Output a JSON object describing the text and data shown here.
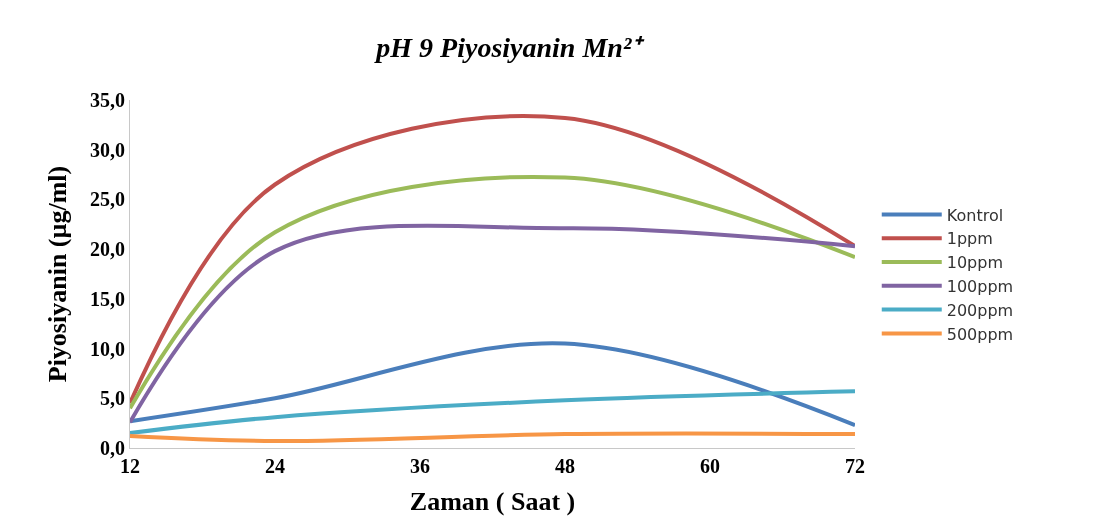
{
  "chart_data": {
    "type": "line",
    "title": "pH 9 Piyosiyanin Mn²⁺",
    "xlabel": "Zaman ( Saat )",
    "ylabel": "Piyosiyanin (µg/ml)",
    "x": [
      12,
      24,
      48,
      72
    ],
    "series": [
      {
        "name": "Kontrol",
        "color": "#4a7ebb",
        "values": [
          2.7,
          5.0,
          10.5,
          2.3
        ]
      },
      {
        "name": "1ppm",
        "color": "#c0504d",
        "values": [
          4.5,
          26.5,
          33.2,
          20.3
        ]
      },
      {
        "name": "10ppm",
        "color": "#9bbb59",
        "values": [
          4.0,
          21.7,
          27.2,
          19.2
        ]
      },
      {
        "name": "100ppm",
        "color": "#8064a2",
        "values": [
          2.6,
          19.8,
          22.1,
          20.3
        ]
      },
      {
        "name": "200ppm",
        "color": "#4bacc6",
        "values": [
          1.5,
          3.1,
          4.8,
          5.7
        ]
      },
      {
        "name": "500ppm",
        "color": "#f79646",
        "values": [
          1.2,
          0.7,
          1.4,
          1.4
        ]
      }
    ],
    "xlim": [
      12,
      72
    ],
    "xticks": [
      12,
      24,
      36,
      48,
      60,
      72
    ],
    "ylim": [
      0,
      35
    ],
    "yticks": [
      {
        "value": 0,
        "label": "0,0"
      },
      {
        "value": 5,
        "label": "5,0"
      },
      {
        "value": 10,
        "label": "10,0"
      },
      {
        "value": 15,
        "label": "15,0"
      },
      {
        "value": 20,
        "label": "20,0"
      },
      {
        "value": 25,
        "label": "25,0"
      },
      {
        "value": 30,
        "label": "30,0"
      },
      {
        "value": 35,
        "label": "35,0"
      }
    ],
    "legend": "right",
    "line_style": "solid"
  }
}
